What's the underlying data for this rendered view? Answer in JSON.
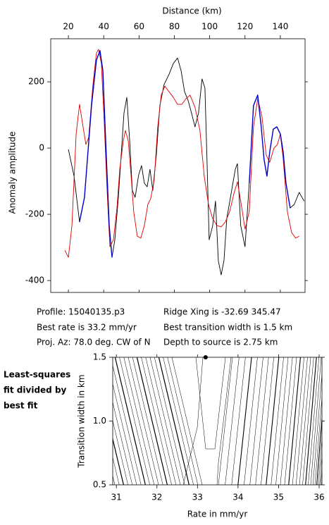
{
  "chart_data": [
    {
      "type": "line",
      "x_label": "Distance (km)",
      "y_label": "Anomaly amplitude",
      "xlim": [
        10,
        154
      ],
      "ylim": [
        -436,
        330
      ],
      "xticks": [
        20,
        40,
        60,
        80,
        100,
        120,
        140
      ],
      "yticks": [
        -400,
        -200,
        0,
        200
      ],
      "annotations": [
        "Profile: 15040135.p3",
        "Best rate is 33.2 mm/yr",
        "Proj. Az: 78.0 deg. CW of N",
        "Ridge Xing is -32.69 345.47",
        "Best transition width is 1.5 km",
        "Depth to source is   2.75 km"
      ],
      "series": [
        {
          "color": "#000000",
          "x": [
            20.0,
            23.2,
            26.3,
            29.1,
            33.1,
            35.9,
            37.9,
            39.5,
            41.1,
            43.1,
            44.7,
            46.3,
            48.3,
            49.9,
            51.5,
            53.1,
            54.7,
            56.2,
            57.8,
            59.8,
            61.4,
            63.0,
            64.6,
            66.2,
            67.8,
            69.8,
            71.8,
            74.2,
            77.0,
            79.4,
            81.8,
            83.8,
            85.8,
            87.7,
            89.7,
            91.7,
            93.7,
            95.7,
            97.3,
            98.5,
            99.7,
            101.7,
            103.3,
            104.9,
            106.5,
            108.1,
            109.7,
            112.1,
            114.5,
            115.7,
            117.6,
            120.0,
            122.4,
            124.8,
            127.2,
            129.2,
            130.8,
            132.4,
            134.0,
            136.0,
            138.0,
            140.0,
            141.6,
            143.2,
            145.6,
            147.9,
            150.7,
            153.5
          ],
          "values": [
            -4,
            -85,
            -223,
            -149,
            128,
            266,
            294,
            234,
            21,
            -234,
            -330,
            -277,
            -149,
            -21,
            106,
            153,
            21,
            -128,
            -149,
            -81,
            -53,
            -106,
            -117,
            -64,
            -128,
            -21,
            128,
            192,
            223,
            255,
            272,
            234,
            170,
            145,
            106,
            64,
            106,
            209,
            181,
            -43,
            -277,
            -234,
            -160,
            -340,
            -383,
            -340,
            -213,
            -138,
            -64,
            -47,
            -234,
            -298,
            -106,
            128,
            160,
            64,
            -34,
            -85,
            -11,
            57,
            64,
            43,
            -11,
            -106,
            -181,
            -170,
            -134,
            -160
          ]
        },
        {
          "color": "#e00000",
          "x": [
            18.0,
            20.0,
            22.0,
            24.4,
            26.3,
            28.3,
            29.9,
            31.5,
            33.9,
            35.9,
            37.1,
            38.7,
            40.3,
            41.9,
            43.5,
            45.5,
            47.5,
            49.1,
            51.1,
            52.3,
            53.9,
            55.5,
            57.0,
            59.0,
            61.0,
            63.0,
            65.0,
            66.6,
            68.6,
            70.6,
            72.6,
            74.6,
            77.0,
            79.4,
            81.8,
            84.2,
            86.6,
            88.9,
            91.7,
            94.5,
            96.9,
            99.3,
            101.7,
            104.1,
            106.5,
            108.9,
            111.3,
            113.7,
            115.7,
            117.6,
            120.0,
            122.4,
            124.8,
            127.2,
            129.6,
            132.0,
            134.0,
            136.4,
            138.4,
            140.0,
            141.6,
            144.0,
            146.4,
            148.7,
            150.7
          ],
          "values": [
            -309,
            -330,
            -234,
            43,
            132,
            64,
            11,
            32,
            192,
            287,
            298,
            255,
            74,
            -128,
            -298,
            -277,
            -181,
            -64,
            21,
            53,
            21,
            -85,
            -192,
            -266,
            -272,
            -234,
            -170,
            -153,
            -96,
            64,
            160,
            187,
            170,
            153,
            132,
            132,
            149,
            160,
            123,
            53,
            -85,
            -170,
            -213,
            -234,
            -238,
            -223,
            -192,
            -138,
            -102,
            -160,
            -245,
            -192,
            64,
            149,
            96,
            -21,
            -43,
            0,
            11,
            43,
            -32,
            -192,
            -255,
            -272,
            -266
          ]
        },
        {
          "color": "#0000cc",
          "x": [
            26.3,
            29.1,
            33.1,
            35.9,
            37.9,
            39.5,
            41.1,
            43.1,
            44.7
          ],
          "values": [
            -223,
            -149,
            128,
            266,
            294,
            234,
            21,
            -234,
            -330
          ]
        },
        {
          "color": "#0000cc",
          "x": [
            122.4,
            124.8,
            127.2,
            129.2,
            130.8,
            132.4,
            134.0,
            136.0,
            138.0,
            140.0,
            141.6,
            143.2,
            145.6
          ],
          "values": [
            -106,
            128,
            160,
            64,
            -34,
            -85,
            -11,
            57,
            64,
            43,
            -11,
            -106,
            -181
          ]
        }
      ]
    },
    {
      "type": "contour",
      "title_lines": [
        "Least-squares",
        "fit divided by",
        "best fit"
      ],
      "x_label": "Rate in mm/yr",
      "y_label": "Transition width in km",
      "xlim": [
        30.91,
        36.07
      ],
      "ylim": [
        0.5,
        1.5
      ],
      "xticks": [
        31,
        32,
        33,
        34,
        35,
        36
      ],
      "yticks": [
        0.5,
        {
          "value": 1,
          "label": "1.0"
        },
        1.5
      ],
      "series": [
        {
          "color": "#000000",
          "x": [
            33.2
          ],
          "values": [
            1.5
          ]
        }
      ]
    }
  ]
}
